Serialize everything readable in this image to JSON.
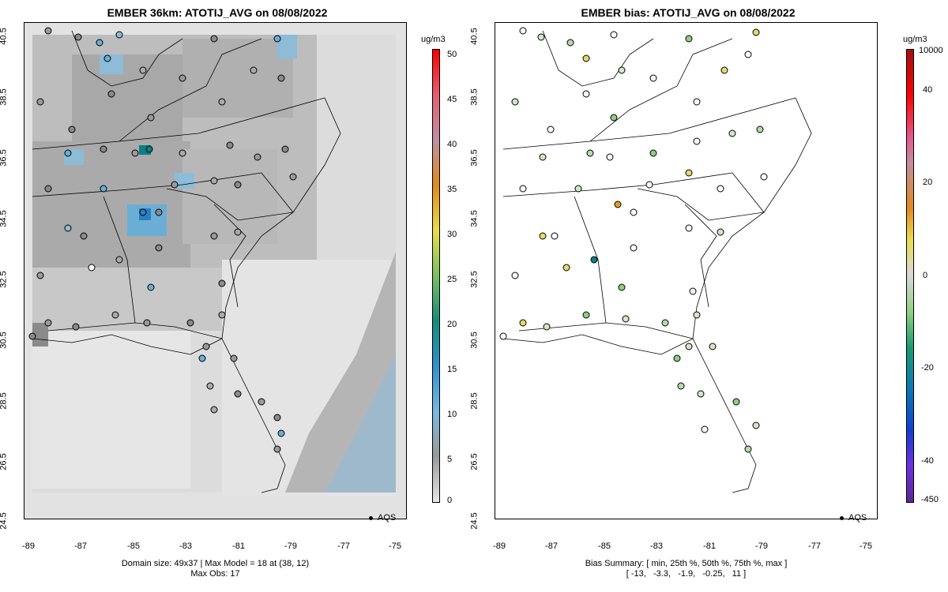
{
  "left_panel": {
    "title": "EMBER 36km: ATOTIJ_AVG on 08/08/2022",
    "colorbar": {
      "unit": "ug/m3",
      "labels": [
        "50",
        "45",
        "40",
        "35",
        "30",
        "25",
        "20",
        "15",
        "10",
        "5",
        "0"
      ]
    },
    "legend": "AQS",
    "footer_line1": "Domain size: 49x37 | Max Model = 18 at (38, 12)",
    "footer_line2": "Max Obs: 17"
  },
  "right_panel": {
    "title": "EMBER bias: ATOTIJ_AVG on 08/08/2022",
    "colorbar": {
      "unit": "ug/m3",
      "labels": [
        "10000",
        "40",
        "20",
        "0",
        "-20",
        "-40",
        "-450"
      ]
    },
    "legend": "AQS",
    "footer_line1": "Bias Summary: [ min, 25th %, 50th %, 75th %, max ]",
    "footer_line2": "[ -13,   -3.3,   -1.9,   -0.25,   11 ]"
  },
  "axes": {
    "y_ticks": [
      "40.5",
      "38.5",
      "36.5",
      "34.5",
      "32.5",
      "30.5",
      "28.5",
      "26.5",
      "24.5"
    ],
    "x_ticks": [
      "-89",
      "-87",
      "-85",
      "-83",
      "-81",
      "-79",
      "-77",
      "-75"
    ]
  },
  "colors": {
    "background_gray": "#d9d9d9",
    "blue": "#6aaed6",
    "teal": "#0a7f85",
    "green": "#8fcf7f",
    "light_green": "#cfe8c5",
    "yellow": "#e6d86a",
    "orange": "#e0a020"
  }
}
